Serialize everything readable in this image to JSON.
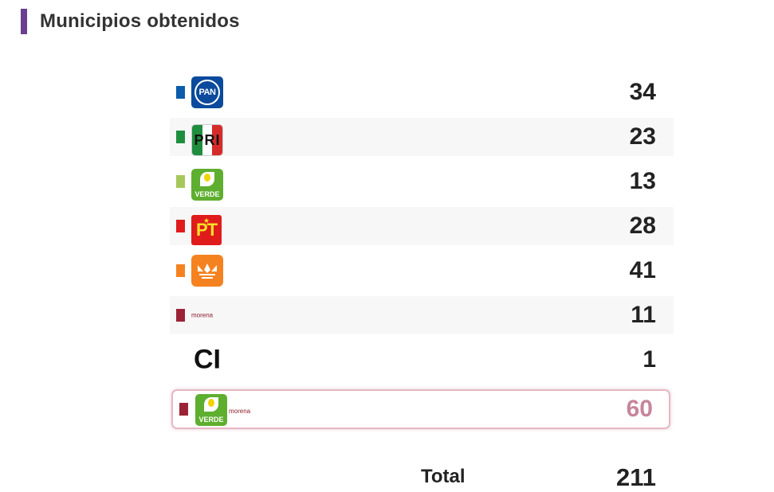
{
  "header": {
    "title": "Municipios obtenidos",
    "accent": "#6a3f8f"
  },
  "rows": [
    {
      "party": "PAN",
      "logo_text": "PAN",
      "color": "#0b5cab",
      "value": "34"
    },
    {
      "party": "PRI",
      "logo_text": "PRI",
      "color": "#1e8e3e",
      "value": "23"
    },
    {
      "party": "VERDE",
      "logo_text": "VERDE",
      "color": "#a6c85a",
      "value": "13"
    },
    {
      "party": "PT",
      "logo_text": "PT",
      "color": "#e01b1b",
      "value": "28"
    },
    {
      "party": "Movimiento Ciudadano",
      "logo_text": "",
      "color": "#f58220",
      "value": "41"
    },
    {
      "party": "morena",
      "logo_text": "morena",
      "color": "#9b2335",
      "value": "11"
    },
    {
      "party": "CI",
      "logo_text": "CI",
      "color": "",
      "value": "1"
    }
  ],
  "coalition": {
    "logo_text_1": "VERDE",
    "logo_text_2": "morena",
    "color": "#9b2335",
    "value": "60"
  },
  "total": {
    "label": "Total",
    "value": "211"
  }
}
